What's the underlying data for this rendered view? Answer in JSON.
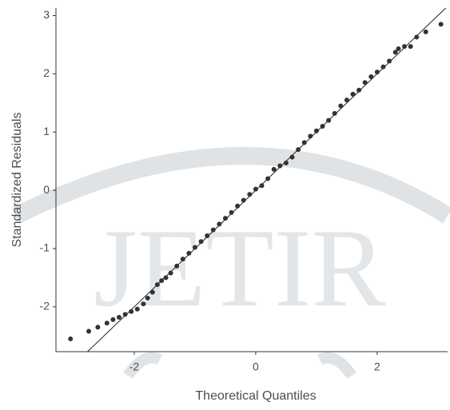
{
  "chart_data": {
    "type": "scatter",
    "xlabel": "Theoretical Quantiles",
    "ylabel": "Standardized Residuals",
    "watermark": "JETIR",
    "color": "#333333",
    "line_color": "#222222",
    "reference_line": {
      "slope": 1,
      "intercept": 0
    },
    "xlim": [
      -3.29,
      3.16
    ],
    "ylim": [
      -2.77,
      3.13
    ],
    "xticks": [
      -2,
      0,
      2
    ],
    "yticks": [
      -2,
      -1,
      0,
      1,
      2,
      3
    ],
    "x": [
      -3.05,
      -2.75,
      -2.6,
      -2.45,
      -2.35,
      -2.25,
      -2.15,
      -2.05,
      -1.95,
      -1.85,
      -1.78,
      -1.7,
      -1.62,
      -1.55,
      -1.48,
      -1.4,
      -1.3,
      -1.2,
      -1.1,
      -1.0,
      -0.9,
      -0.8,
      -0.7,
      -0.6,
      -0.5,
      -0.4,
      -0.3,
      -0.2,
      -0.1,
      0.0,
      0.1,
      0.2,
      0.3,
      0.4,
      0.5,
      0.6,
      0.7,
      0.8,
      0.9,
      1.0,
      1.1,
      1.2,
      1.3,
      1.4,
      1.5,
      1.6,
      1.7,
      1.8,
      1.9,
      2.0,
      2.1,
      2.2,
      2.3,
      2.35,
      2.45,
      2.55,
      2.65,
      2.8,
      3.05
    ],
    "values": [
      -2.55,
      -2.42,
      -2.35,
      -2.28,
      -2.22,
      -2.18,
      -2.13,
      -2.08,
      -2.04,
      -1.95,
      -1.85,
      -1.75,
      -1.62,
      -1.55,
      -1.5,
      -1.42,
      -1.3,
      -1.18,
      -1.08,
      -0.98,
      -0.88,
      -0.78,
      -0.68,
      -0.58,
      -0.48,
      -0.38,
      -0.27,
      -0.17,
      -0.07,
      0.02,
      0.08,
      0.2,
      0.36,
      0.42,
      0.47,
      0.57,
      0.7,
      0.82,
      0.93,
      1.02,
      1.1,
      1.2,
      1.32,
      1.45,
      1.55,
      1.65,
      1.72,
      1.85,
      1.95,
      2.03,
      2.12,
      2.22,
      2.37,
      2.43,
      2.47,
      2.47,
      2.63,
      2.72,
      2.85
    ]
  }
}
